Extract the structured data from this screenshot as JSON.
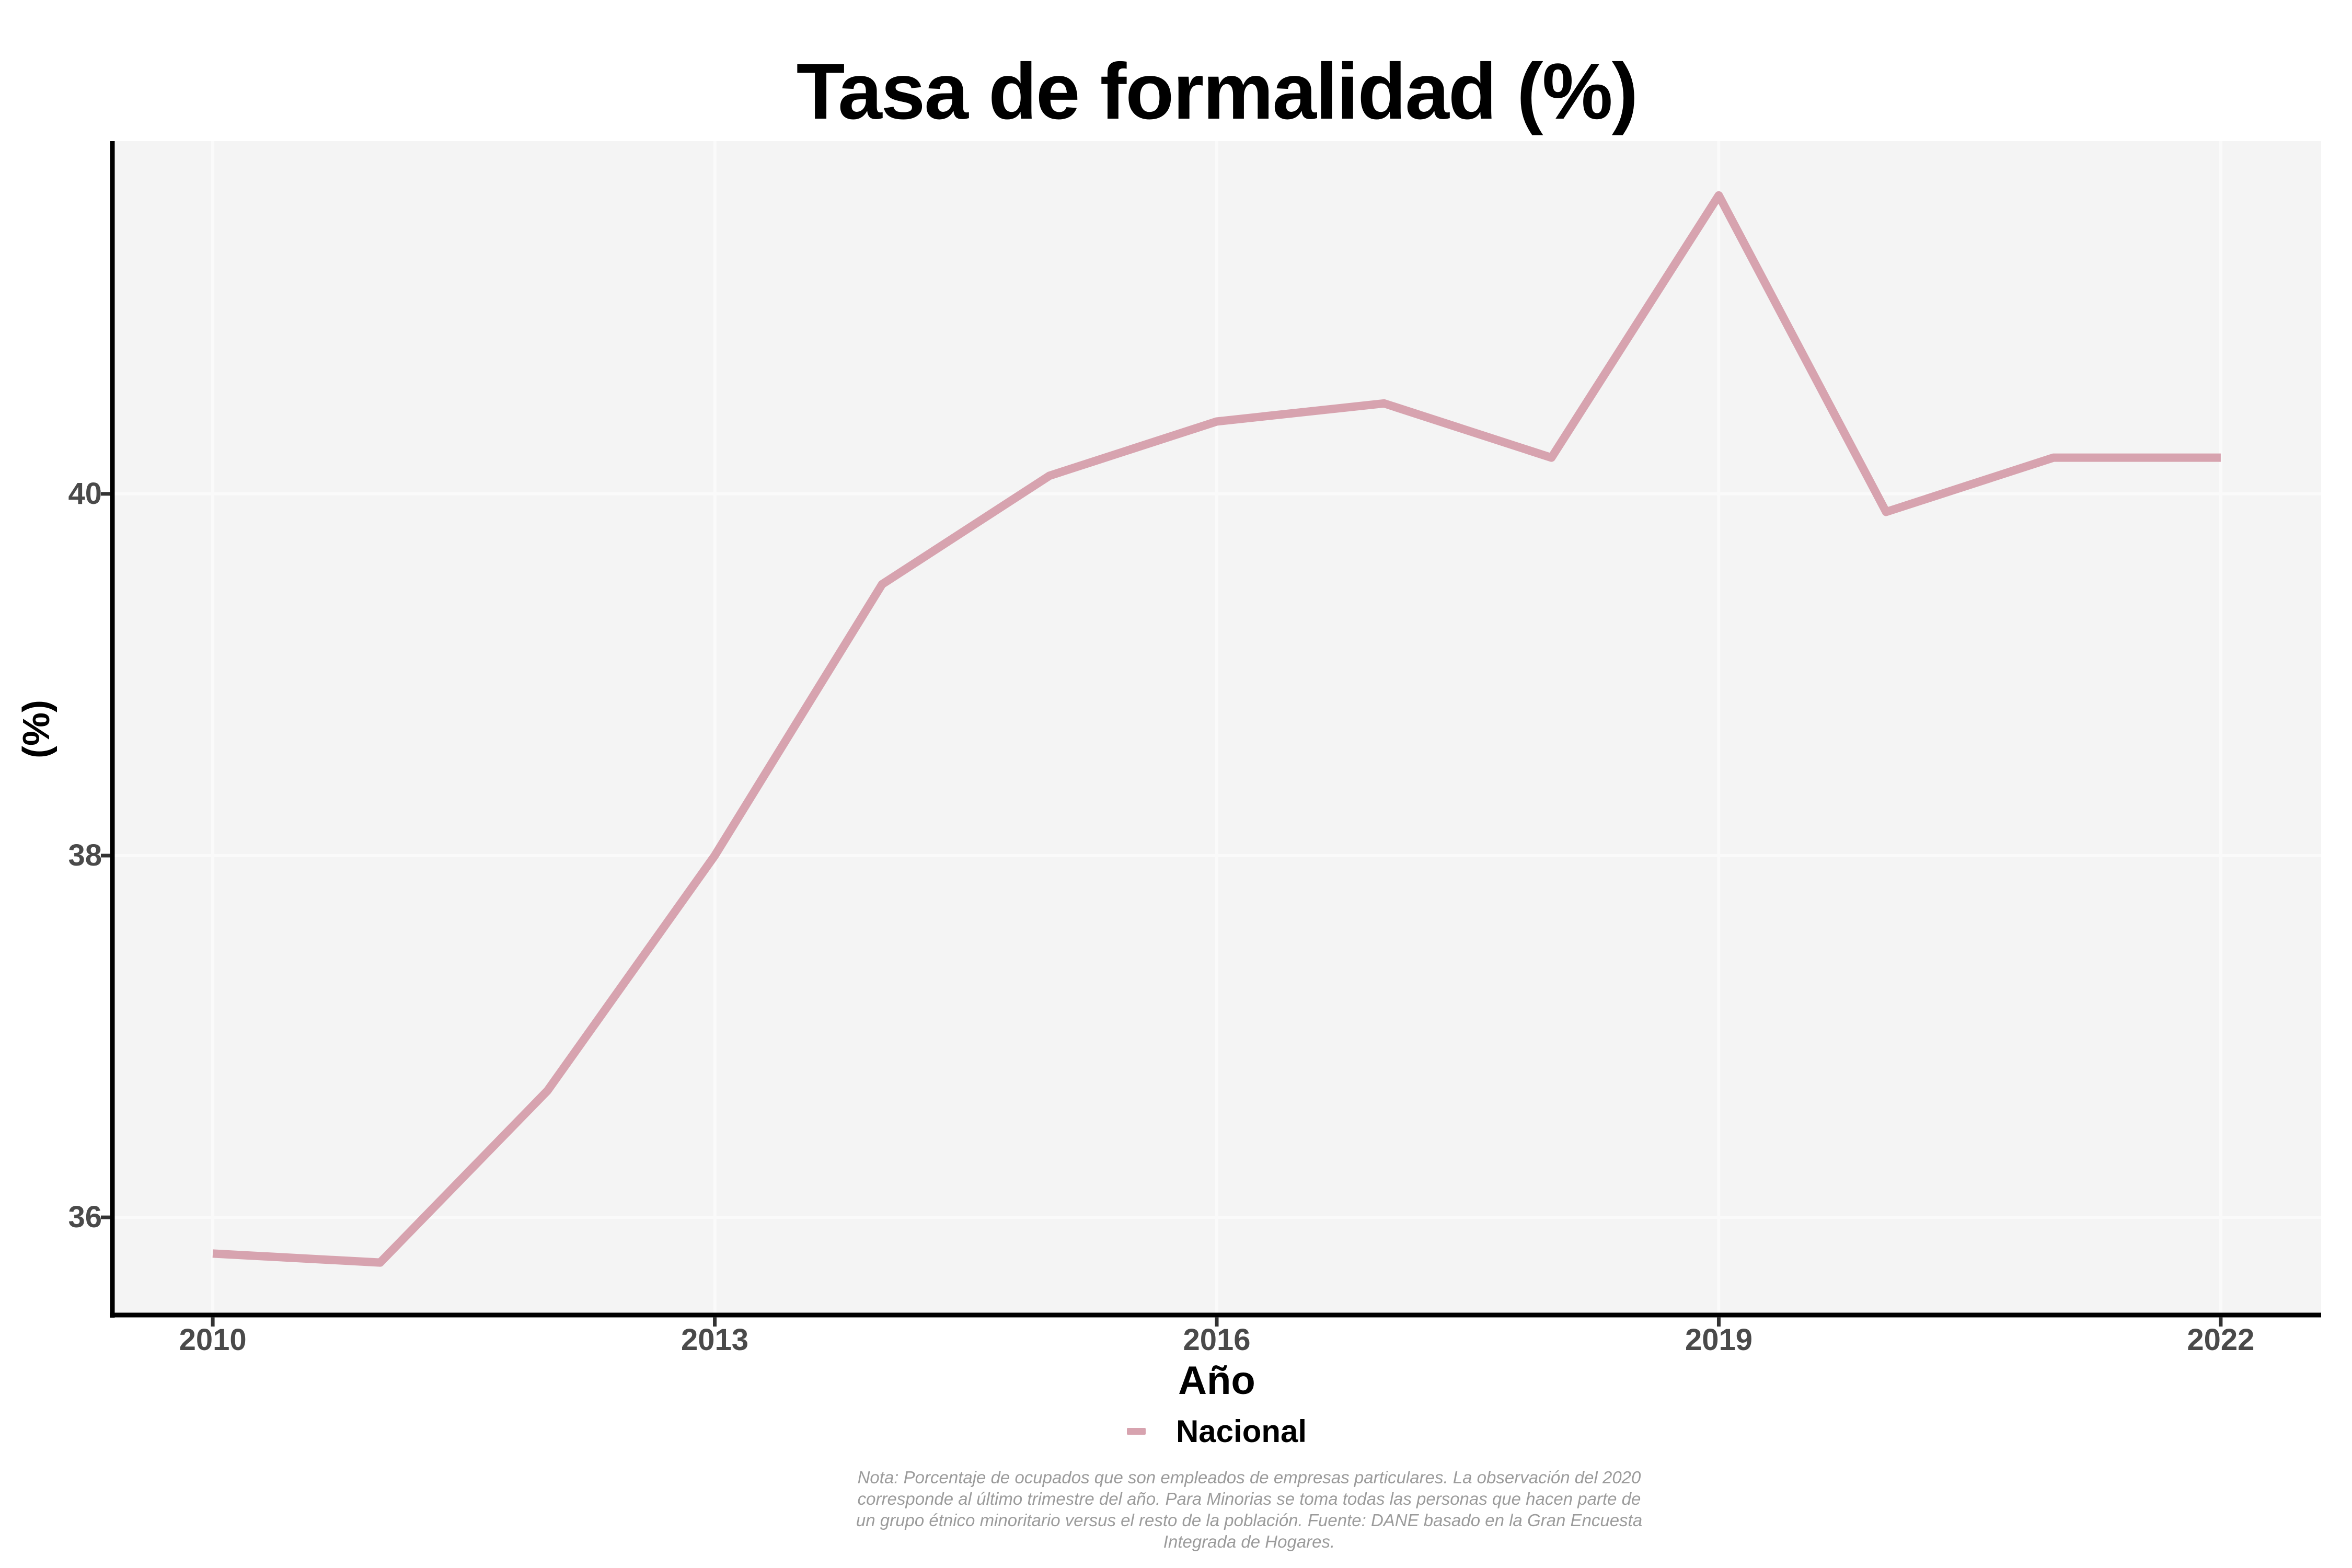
{
  "title": "Tasa de formalidad (%)",
  "legend": {
    "label": "Nacional"
  },
  "note_lines": [
    "Nota: Porcentaje de ocupados que son empleados de empresas particulares. La observación del 2020",
    "corresponde al último trimestre del año. Para Minorias se toma todas las personas que hacen parte de",
    "un grupo étnico minoritario versus el resto de la población. Fuente: DANE basado en la Gran Encuesta",
    "Integrada de Hogares."
  ],
  "chart_data": {
    "type": "line",
    "title": "Tasa de formalidad (%)",
    "xlabel": "Año",
    "ylabel": "(%)",
    "x": [
      2010,
      2011,
      2012,
      2013,
      2014,
      2015,
      2016,
      2017,
      2018,
      2019,
      2020,
      2021,
      2022
    ],
    "series": [
      {
        "name": "Nacional",
        "color": "#d7a3af",
        "values": [
          35.8,
          35.75,
          36.7,
          38.0,
          39.5,
          40.1,
          40.4,
          40.5,
          40.2,
          41.65,
          39.9,
          40.2,
          40.2
        ]
      }
    ],
    "x_tick_values": [
      2010,
      2013,
      2016,
      2019,
      2022
    ],
    "x_tick_labels": [
      "2010",
      "2013",
      "2016",
      "2019",
      "2022"
    ],
    "y_tick_values": [
      40,
      38,
      36
    ],
    "y_tick_labels": [
      "40",
      "38",
      "36"
    ],
    "xlim": [
      2009.4,
      2022.6
    ],
    "ylim": [
      35.46,
      41.95
    ],
    "grid": "major",
    "legend_position": "bottom",
    "panel_bg": "#f4f4f4",
    "grid_color": "#fafafa",
    "axis_color": "#000000",
    "tick_color": "#333333",
    "tick_label_color": "#4a4a4a",
    "note_color": "#9b9b9b"
  }
}
